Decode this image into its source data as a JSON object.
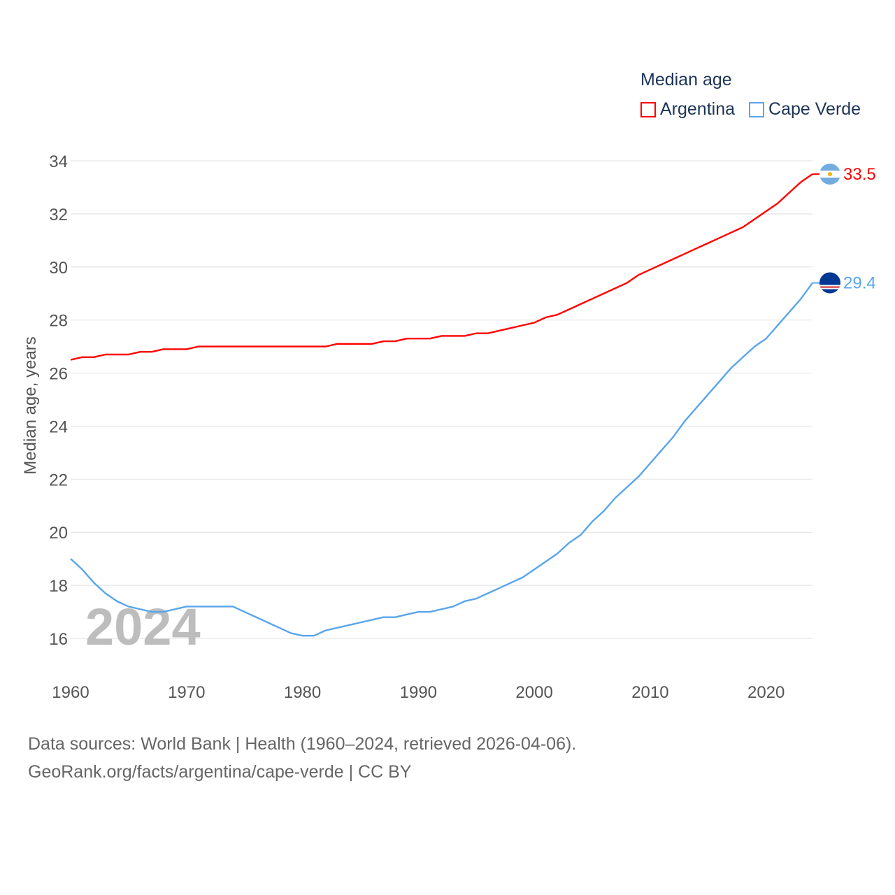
{
  "legend": {
    "title": "Median age",
    "items": [
      {
        "label": "Argentina",
        "color": "#ff0000"
      },
      {
        "label": "Cape Verde",
        "color": "#5aa5ec"
      }
    ]
  },
  "footer": {
    "line1": "Data sources: World Bank | Health (1960–2024, retrieved 2026-04-06).",
    "line2": "GeoRank.org/facts/argentina/cape-verde | CC BY"
  },
  "chart_data": {
    "type": "line",
    "title": "Median age",
    "xlabel": "",
    "ylabel": "Median age, years",
    "xlim": [
      1960,
      2024
    ],
    "ylim": [
      15,
      34.5
    ],
    "x_ticks": [
      "1960",
      "1970",
      "1980",
      "1990",
      "2000",
      "2010",
      "2020"
    ],
    "y_ticks": [
      "16",
      "18",
      "20",
      "22",
      "24",
      "26",
      "28",
      "30",
      "32",
      "34"
    ],
    "grid": true,
    "legend_position": "top-right",
    "watermark_year": "2024",
    "x": [
      1960,
      1961,
      1962,
      1963,
      1964,
      1965,
      1966,
      1967,
      1968,
      1969,
      1970,
      1971,
      1972,
      1973,
      1974,
      1975,
      1976,
      1977,
      1978,
      1979,
      1980,
      1981,
      1982,
      1983,
      1984,
      1985,
      1986,
      1987,
      1988,
      1989,
      1990,
      1991,
      1992,
      1993,
      1994,
      1995,
      1996,
      1997,
      1998,
      1999,
      2000,
      2001,
      2002,
      2003,
      2004,
      2005,
      2006,
      2007,
      2008,
      2009,
      2010,
      2011,
      2012,
      2013,
      2014,
      2015,
      2016,
      2017,
      2018,
      2019,
      2020,
      2021,
      2022,
      2023,
      2024
    ],
    "series": [
      {
        "name": "Argentina",
        "color": "#ff0000",
        "end_label": "33.5",
        "values": [
          26.5,
          26.6,
          26.6,
          26.7,
          26.7,
          26.7,
          26.8,
          26.8,
          26.9,
          26.9,
          26.9,
          27.0,
          27.0,
          27.0,
          27.0,
          27.0,
          27.0,
          27.0,
          27.0,
          27.0,
          27.0,
          27.0,
          27.0,
          27.1,
          27.1,
          27.1,
          27.1,
          27.2,
          27.2,
          27.3,
          27.3,
          27.3,
          27.4,
          27.4,
          27.4,
          27.5,
          27.5,
          27.6,
          27.7,
          27.8,
          27.9,
          28.1,
          28.2,
          28.4,
          28.6,
          28.8,
          29.0,
          29.2,
          29.4,
          29.7,
          29.9,
          30.1,
          30.3,
          30.5,
          30.7,
          30.9,
          31.1,
          31.3,
          31.5,
          31.8,
          32.1,
          32.4,
          32.8,
          33.2,
          33.5
        ]
      },
      {
        "name": "Cape Verde",
        "color": "#5aa5ec",
        "end_label": "29.4",
        "values": [
          19.0,
          18.6,
          18.1,
          17.7,
          17.4,
          17.2,
          17.1,
          17.0,
          17.0,
          17.1,
          17.2,
          17.2,
          17.2,
          17.2,
          17.2,
          17.0,
          16.8,
          16.6,
          16.4,
          16.2,
          16.1,
          16.1,
          16.3,
          16.4,
          16.5,
          16.6,
          16.7,
          16.8,
          16.8,
          16.9,
          17.0,
          17.0,
          17.1,
          17.2,
          17.4,
          17.5,
          17.7,
          17.9,
          18.1,
          18.3,
          18.6,
          18.9,
          19.2,
          19.6,
          19.9,
          20.4,
          20.8,
          21.3,
          21.7,
          22.1,
          22.6,
          23.1,
          23.6,
          24.2,
          24.7,
          25.2,
          25.7,
          26.2,
          26.6,
          27.0,
          27.3,
          27.8,
          28.3,
          28.8,
          29.4
        ]
      }
    ]
  }
}
